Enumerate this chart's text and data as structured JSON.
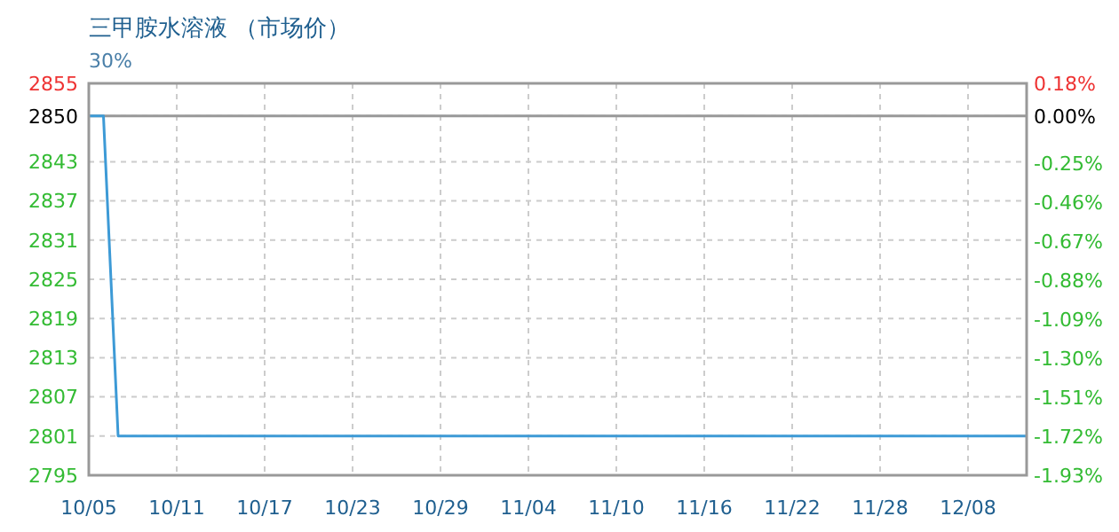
{
  "chart_data": {
    "type": "line",
    "title": "三甲胺水溶液 （市场价）",
    "subtitle": "30%",
    "categories": [
      "10/05",
      null,
      null,
      null,
      null,
      null,
      "10/11",
      null,
      null,
      null,
      null,
      null,
      "10/17",
      null,
      null,
      null,
      null,
      null,
      "10/23",
      null,
      null,
      null,
      null,
      null,
      "10/29",
      null,
      null,
      null,
      null,
      null,
      "11/04",
      null,
      null,
      null,
      null,
      null,
      "11/10",
      null,
      null,
      null,
      null,
      null,
      "11/16",
      null,
      null,
      null,
      null,
      null,
      "11/22",
      null,
      null,
      null,
      null,
      null,
      "11/28",
      null,
      null,
      null,
      null,
      null,
      "12/08",
      null,
      null,
      null,
      null
    ],
    "series": [
      {
        "color": "#3d9ad6",
        "values": [
          2850,
          2850,
          2801,
          2801,
          2801,
          2801,
          2801,
          2801,
          2801,
          2801,
          2801,
          2801,
          2801,
          2801,
          2801,
          2801,
          2801,
          2801,
          2801,
          2801,
          2801,
          2801,
          2801,
          2801,
          2801,
          2801,
          2801,
          2801,
          2801,
          2801,
          2801,
          2801,
          2801,
          2801,
          2801,
          2801,
          2801,
          2801,
          2801,
          2801,
          2801,
          2801,
          2801,
          2801,
          2801,
          2801,
          2801,
          2801,
          2801,
          2801,
          2801,
          2801,
          2801,
          2801,
          2801,
          2801,
          2801,
          2801,
          2801,
          2801,
          2801,
          2801,
          2801,
          2801,
          2801
        ]
      }
    ],
    "ylim": [
      2795,
      2855
    ],
    "yticks": [
      2795,
      2801,
      2807,
      2813,
      2819,
      2825,
      2831,
      2837,
      2843,
      2850,
      2855
    ],
    "y2lim": [
      -1.93,
      0.18
    ],
    "y2ticks": [
      {
        "value": -1.93,
        "label": "-1.93%"
      },
      {
        "value": -1.72,
        "label": "-1.72%"
      },
      {
        "value": -1.51,
        "label": "-1.51%"
      },
      {
        "value": -1.3,
        "label": "-1.30%"
      },
      {
        "value": -1.09,
        "label": "-1.09%"
      },
      {
        "value": -0.88,
        "label": "-0.88%"
      },
      {
        "value": -0.67,
        "label": "-0.67%"
      },
      {
        "value": -0.46,
        "label": "-0.46%"
      },
      {
        "value": -0.25,
        "label": "-0.25%"
      },
      {
        "value": 0,
        "label": "0.00%"
      },
      {
        "value": 0.18,
        "label": "0.18%"
      }
    ],
    "ref_lines": [
      {
        "axis": "y",
        "value": 2850,
        "color": "#999999"
      }
    ],
    "grid": true,
    "marker": "none",
    "line_style": "solid"
  }
}
